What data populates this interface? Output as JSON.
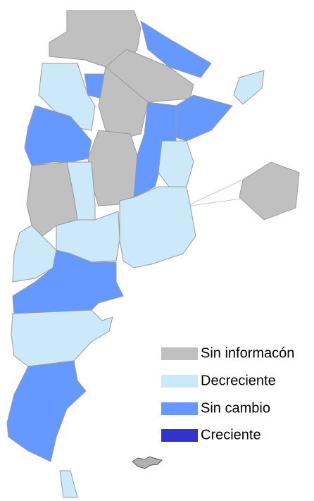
{
  "legend": {
    "items": [
      {
        "label": "Sin informacón",
        "color": "#c0c0c0"
      },
      {
        "label": "Decreciente",
        "color": "#cce9f9"
      },
      {
        "label": "Sin cambio",
        "color": "#6699ff"
      },
      {
        "label": "Creciente",
        "color": "#3333cc"
      }
    ]
  }
}
